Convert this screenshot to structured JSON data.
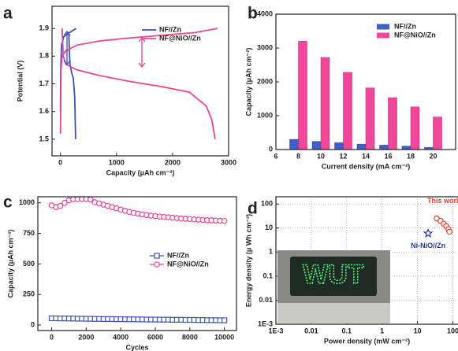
{
  "chart_data": [
    {
      "type": "line",
      "panel_label": "a",
      "xlabel": "Capacity (μAh cm⁻²)",
      "ylabel": "Potential (V)",
      "xlim": [
        -150,
        3000
      ],
      "ylim": [
        1.44,
        1.98
      ],
      "xticks": [
        0,
        1000,
        2000,
        3000
      ],
      "yticks": [
        1.5,
        1.6,
        1.7,
        1.8,
        1.9
      ],
      "legend": "upper right",
      "series": [
        {
          "name": "NF//Zn",
          "color": "#3d4fb8",
          "x": [
            150,
            160,
            170,
            200,
            230,
            255,
            270,
            null,
            0,
            5,
            20,
            60,
            120,
            200,
            280
          ],
          "values": [
            1.88,
            1.82,
            1.77,
            1.74,
            1.72,
            1.65,
            1.5,
            null,
            1.6,
            1.75,
            1.84,
            1.87,
            1.88,
            1.89,
            1.9
          ]
        },
        {
          "name": "NF@NiO//Zn",
          "color": "#e8468f",
          "x": [
            0,
            10,
            30,
            100,
            300,
            700,
            1200,
            1800,
            2400,
            2800,
            null,
            30,
            50,
            100,
            300,
            700,
            1200,
            1800,
            2300,
            2600,
            2700,
            2760
          ],
          "values": [
            1.52,
            1.75,
            1.8,
            1.82,
            1.84,
            1.855,
            1.865,
            1.875,
            1.885,
            1.9,
            null,
            1.9,
            1.8,
            1.77,
            1.75,
            1.73,
            1.71,
            1.69,
            1.67,
            1.62,
            1.57,
            1.5
          ]
        }
      ]
    },
    {
      "type": "bar",
      "panel_label": "b",
      "xlabel": "Current density (mA cm⁻²)",
      "ylabel": "Capacity (μAh cm⁻²)",
      "xlim": [
        6,
        22
      ],
      "ylim": [
        0,
        4000
      ],
      "xticks": [
        6,
        8,
        10,
        12,
        14,
        16,
        18,
        20
      ],
      "yticks": [
        0,
        1000,
        2000,
        3000,
        4000
      ],
      "legend": "upper right",
      "x": [
        8,
        10,
        12,
        14,
        16,
        18,
        20
      ],
      "series": [
        {
          "name": "NF//Zn",
          "color": "#4060c8",
          "values": [
            300,
            240,
            200,
            160,
            130,
            100,
            60
          ]
        },
        {
          "name": "NF@NiO//Zn",
          "color": "#f0479a",
          "values": [
            3200,
            2720,
            2280,
            1820,
            1530,
            1260,
            960
          ]
        }
      ]
    },
    {
      "type": "line",
      "panel_label": "c",
      "xlabel": "Cycles",
      "ylabel": "Capacity (μAh cm⁻²)",
      "xlim": [
        -800,
        10700
      ],
      "ylim": [
        -45,
        1050
      ],
      "xticks": [
        0,
        2000,
        4000,
        6000,
        8000,
        10000
      ],
      "yticks": [
        0,
        250,
        500,
        750,
        1000
      ],
      "legend": "center right",
      "x": [
        0,
        250,
        500,
        750,
        1000,
        1250,
        1500,
        1750,
        2000,
        2250,
        2500,
        2750,
        3000,
        3250,
        3500,
        3750,
        4000,
        4250,
        4500,
        4750,
        5000,
        5250,
        5500,
        5750,
        6000,
        6250,
        6500,
        6750,
        7000,
        7250,
        7500,
        7750,
        8000,
        8250,
        8500,
        8750,
        9000,
        9250,
        9500,
        9750,
        10000
      ],
      "series": [
        {
          "name": "NF//Zn",
          "color": "#3d4fb8",
          "marker": "square",
          "line": false,
          "values": [
            55,
            55,
            54,
            54,
            53,
            53,
            52,
            52,
            51,
            51,
            50,
            50,
            49,
            49,
            49,
            48,
            48,
            47,
            47,
            47,
            46,
            46,
            45,
            45,
            45,
            44,
            44,
            44,
            43,
            43,
            43,
            42,
            42,
            42,
            41,
            41,
            40,
            40,
            40,
            39,
            39
          ]
        },
        {
          "name": "NF@NiO//Zn",
          "color": "#e8468f",
          "marker": "circle",
          "line": false,
          "values": [
            980,
            965,
            975,
            1000,
            1020,
            1030,
            1030,
            1032,
            1032,
            1028,
            1005,
            995,
            985,
            975,
            965,
            955,
            945,
            935,
            925,
            918,
            912,
            905,
            900,
            895,
            892,
            888,
            885,
            882,
            878,
            875,
            872,
            870,
            868,
            865,
            863,
            860,
            858,
            857,
            855,
            854,
            852
          ]
        }
      ]
    },
    {
      "type": "scatter",
      "panel_label": "d",
      "xlabel": "Power density (mW cm⁻²)",
      "ylabel": "Energy density (μ Wh cm⁻²)",
      "xscale": "log",
      "yscale": "log",
      "grid": true,
      "inset_text": "WUT",
      "xlim": [
        0.001,
        200
      ],
      "ylim": [
        0.001,
        200
      ],
      "xticks": [
        {
          "value": 0.001,
          "label": "1E-3"
        },
        0.01,
        0.1,
        1,
        10,
        100
      ],
      "yticks": [
        {
          "value": 0.001,
          "label": "1E-3"
        },
        0.01,
        0.1,
        1,
        10,
        100
      ],
      "series": [
        {
          "name": "This work",
          "color": "#e8412c",
          "marker": "circle",
          "x": [
            35,
            45,
            55,
            65,
            75,
            80
          ],
          "values": [
            25,
            20,
            15,
            12,
            9,
            7
          ]
        },
        {
          "name": "Ni-NiO//Zn",
          "color": "#2a3a8c",
          "marker": "star",
          "x": [
            20
          ],
          "values": [
            6
          ]
        }
      ]
    }
  ]
}
